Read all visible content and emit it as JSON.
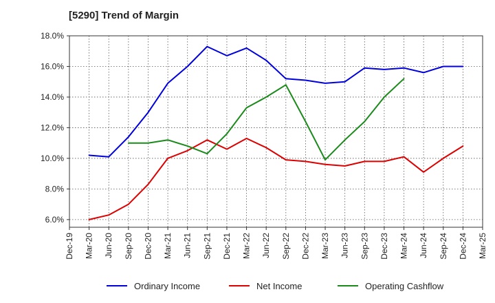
{
  "chart_data": {
    "type": "line",
    "title": "[5290]  Trend of Margin",
    "xlabel": "",
    "ylabel": "",
    "categories": [
      "Dec-19",
      "Mar-20",
      "Jun-20",
      "Sep-20",
      "Dec-20",
      "Mar-21",
      "Jun-21",
      "Sep-21",
      "Dec-21",
      "Mar-22",
      "Jun-22",
      "Sep-22",
      "Dec-22",
      "Mar-23",
      "Jun-23",
      "Sep-23",
      "Dec-23",
      "Mar-24",
      "Jun-24",
      "Sep-24",
      "Dec-24",
      "Mar-25"
    ],
    "ylim": [
      5.5,
      18.0
    ],
    "yticks": [
      6.0,
      8.0,
      10.0,
      12.0,
      14.0,
      16.0,
      18.0
    ],
    "ytick_labels": [
      "6.0%",
      "8.0%",
      "10.0%",
      "12.0%",
      "14.0%",
      "16.0%",
      "18.0%"
    ],
    "grid": true,
    "legend_position": "bottom",
    "series": [
      {
        "name": "Ordinary Income",
        "color": "#0000dd",
        "values": [
          null,
          10.2,
          10.1,
          11.4,
          13.0,
          14.9,
          16.0,
          17.3,
          16.7,
          17.2,
          16.4,
          15.2,
          15.1,
          14.9,
          15.0,
          15.9,
          15.8,
          15.9,
          15.6,
          16.0,
          16.0,
          null
        ]
      },
      {
        "name": "Net Income",
        "color": "#dd0000",
        "values": [
          null,
          6.0,
          6.3,
          7.0,
          8.3,
          10.0,
          10.5,
          11.2,
          10.6,
          11.3,
          10.7,
          9.9,
          9.8,
          9.6,
          9.5,
          9.8,
          9.8,
          10.1,
          9.1,
          10.0,
          10.8,
          null
        ]
      },
      {
        "name": "Operating Cashflow",
        "color": "#1a8a1a",
        "values": [
          null,
          null,
          null,
          11.0,
          11.0,
          11.2,
          10.8,
          10.3,
          11.6,
          13.3,
          14.0,
          14.8,
          12.4,
          9.9,
          11.2,
          12.4,
          14.0,
          15.2,
          null,
          null,
          null,
          null
        ]
      }
    ]
  }
}
